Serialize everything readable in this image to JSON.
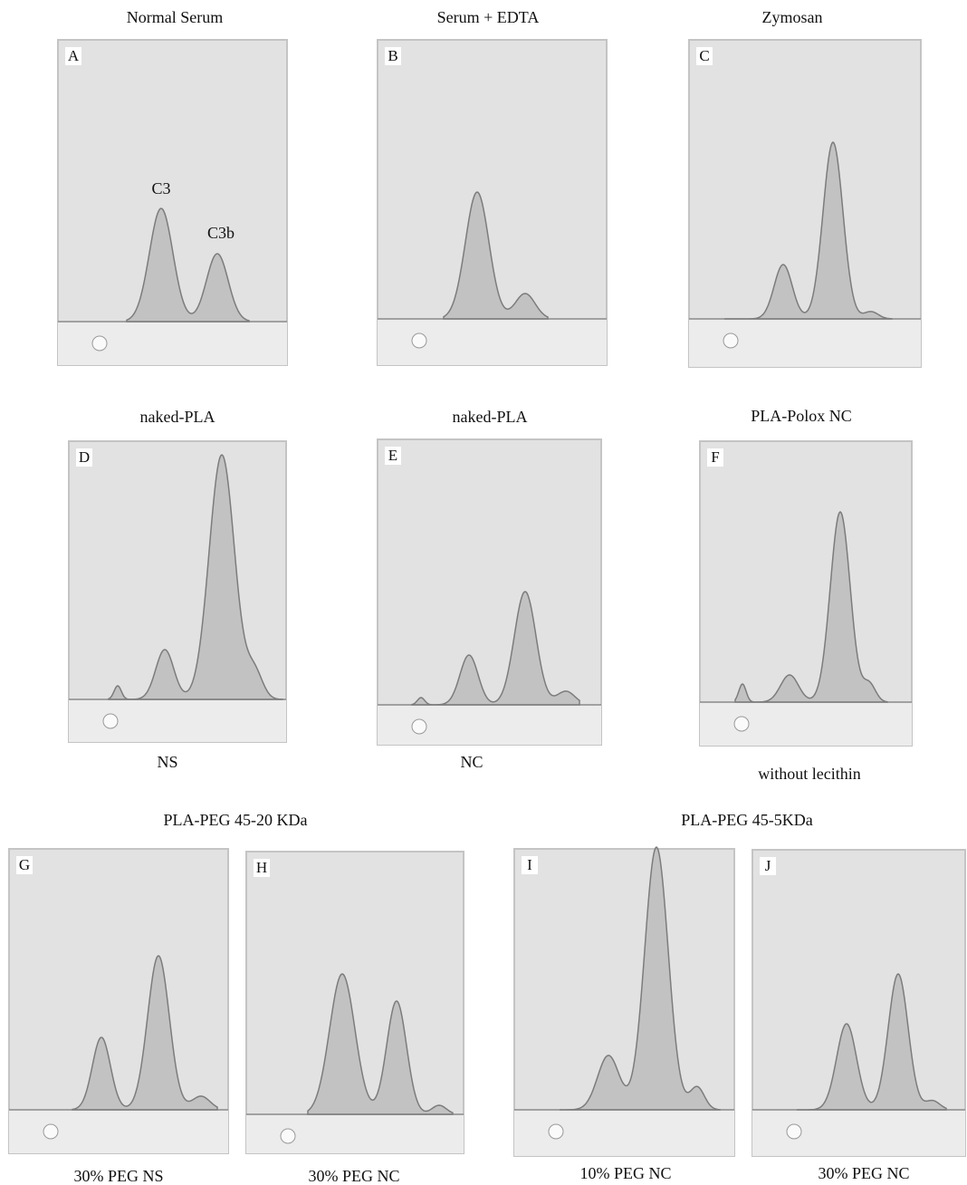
{
  "figure": {
    "panels": [
      {
        "letter": "A",
        "title": "Normal Serum"
      },
      {
        "letter": "B",
        "title": "Serum + EDTA"
      },
      {
        "letter": "C",
        "title": "Zymosan"
      },
      {
        "letter": "D",
        "title": "naked-PLA",
        "caption": "NS"
      },
      {
        "letter": "E",
        "title": "naked-PLA",
        "caption": "NC"
      },
      {
        "letter": "F",
        "title": "PLA-Polox NC",
        "caption": "without lecithin"
      },
      {
        "letter": "G",
        "caption": "30% PEG NS"
      },
      {
        "letter": "H",
        "caption": "30% PEG NC"
      },
      {
        "letter": "I",
        "caption": "10% PEG NC"
      },
      {
        "letter": "J",
        "caption": "30% PEG NC"
      }
    ],
    "group_titles": [
      "PLA-PEG 45-20 KDa",
      "PLA-PEG 45-5KDa"
    ],
    "peak_labels": [
      "C3",
      "C3b"
    ]
  }
}
